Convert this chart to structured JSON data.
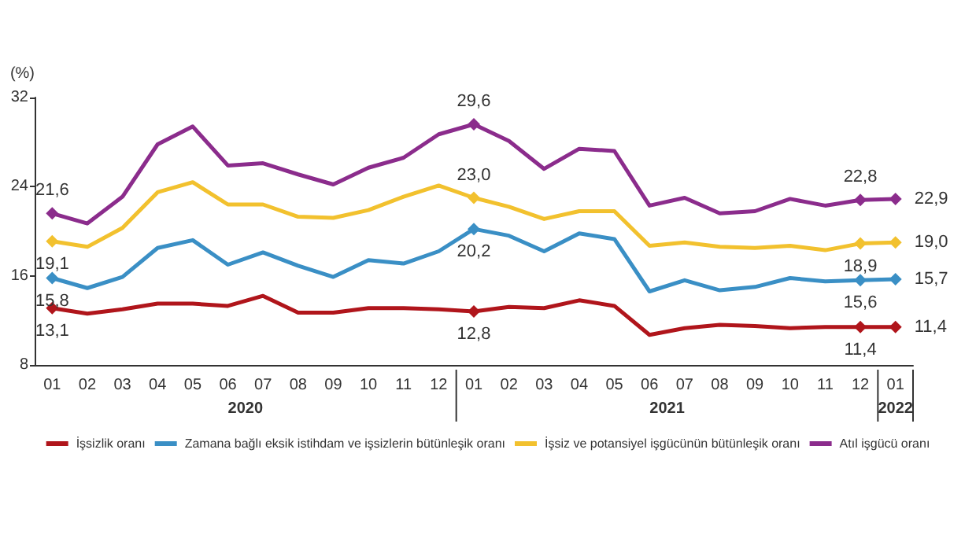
{
  "chart_data": {
    "type": "line",
    "ylabel": "(%)",
    "categories": [
      "01",
      "02",
      "03",
      "04",
      "05",
      "06",
      "07",
      "08",
      "09",
      "10",
      "11",
      "12",
      "01",
      "02",
      "03",
      "04",
      "05",
      "06",
      "07",
      "08",
      "09",
      "10",
      "11",
      "12",
      "01"
    ],
    "annotations": [
      "2020",
      "2021",
      "2022"
    ],
    "ylim": [
      8,
      32
    ],
    "yticks": [
      8,
      16,
      24,
      32
    ],
    "grid": false,
    "legend": "bottom",
    "line_style": "solid",
    "series": [
      {
        "name": "İşsizlik oranı",
        "color": "#b0151b",
        "values": [
          13.1,
          12.6,
          13.0,
          13.5,
          13.5,
          13.3,
          14.2,
          12.7,
          12.7,
          13.1,
          13.1,
          13.0,
          12.8,
          13.2,
          13.1,
          13.8,
          13.3,
          10.7,
          11.3,
          11.6,
          11.5,
          11.3,
          11.4,
          11.4,
          11.4
        ],
        "value_labels": [
          "13,1",
          null,
          null,
          null,
          null,
          null,
          null,
          null,
          null,
          null,
          null,
          null,
          "12,8",
          null,
          null,
          null,
          null,
          null,
          null,
          null,
          null,
          null,
          null,
          "11,4",
          "11,4"
        ]
      },
      {
        "name": "Zamana bağlı eksik istihdam ve işsizlerin bütünleşik oranı",
        "color": "#3a8fc5",
        "values": [
          15.8,
          14.9,
          15.9,
          18.5,
          19.2,
          17.0,
          18.1,
          16.9,
          15.9,
          17.4,
          17.1,
          18.2,
          20.2,
          19.6,
          18.2,
          19.8,
          19.3,
          14.6,
          15.6,
          14.7,
          15.0,
          15.8,
          15.5,
          15.6,
          15.7
        ],
        "value_labels": [
          "15,8",
          null,
          null,
          null,
          null,
          null,
          null,
          null,
          null,
          null,
          null,
          null,
          "20,2",
          null,
          null,
          null,
          null,
          null,
          null,
          null,
          null,
          null,
          null,
          "15,6",
          "15,7"
        ]
      },
      {
        "name": "İşsiz ve potansiyel işgücünün bütünleşik oranı",
        "color": "#f2c12e",
        "values": [
          19.1,
          18.6,
          20.3,
          23.5,
          24.4,
          22.4,
          22.4,
          21.3,
          21.2,
          21.9,
          23.1,
          24.1,
          23.0,
          22.2,
          21.1,
          21.8,
          21.8,
          18.7,
          19.0,
          18.6,
          18.5,
          18.7,
          18.3,
          18.9,
          19.0
        ],
        "value_labels": [
          "19,1",
          null,
          null,
          null,
          null,
          null,
          null,
          null,
          null,
          null,
          null,
          null,
          "23,0",
          null,
          null,
          null,
          null,
          null,
          null,
          null,
          null,
          null,
          null,
          "18,9",
          "19,0"
        ]
      },
      {
        "name": "Atıl işgücü oranı",
        "color": "#8b2c8c",
        "values": [
          21.6,
          20.7,
          23.1,
          27.8,
          29.4,
          25.9,
          26.1,
          25.1,
          24.2,
          25.7,
          26.6,
          28.7,
          29.6,
          28.1,
          25.6,
          27.4,
          27.2,
          22.3,
          23.0,
          21.6,
          21.8,
          22.9,
          22.3,
          22.8,
          22.9
        ],
        "value_labels": [
          "21,6",
          null,
          null,
          null,
          null,
          null,
          null,
          null,
          null,
          null,
          null,
          null,
          "29,6",
          null,
          null,
          null,
          null,
          null,
          null,
          null,
          null,
          null,
          null,
          "22,8",
          "22,9"
        ]
      }
    ]
  }
}
